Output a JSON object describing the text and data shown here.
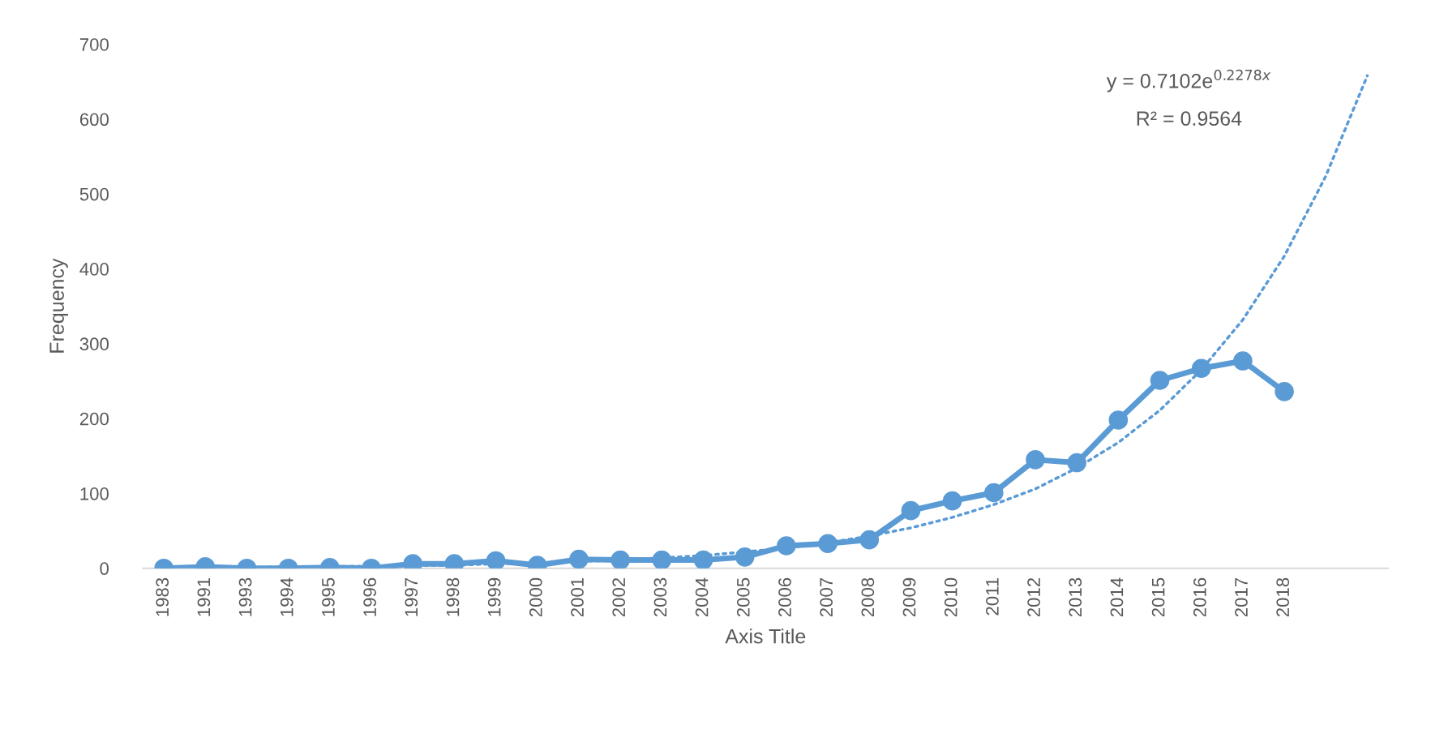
{
  "chart_data": {
    "type": "line",
    "xlabel": "Axis Title",
    "ylabel": "Frequency",
    "categories": [
      "1983",
      "1991",
      "1993",
      "1994",
      "1995",
      "1996",
      "1997",
      "1998",
      "1999",
      "2000",
      "2001",
      "2002",
      "2003",
      "2004",
      "2005",
      "2006",
      "2007",
      "2008",
      "2009",
      "2010",
      "2011",
      "2012",
      "2013",
      "2014",
      "2015",
      "2016",
      "2017",
      "2018",
      null,
      null
    ],
    "series": [
      {
        "color": "#5b9bd5",
        "marker": "circle",
        "line_style": "solid",
        "values": [
          0,
          2,
          0,
          0,
          1,
          0,
          6,
          6,
          10,
          4,
          12,
          11,
          11,
          11,
          15,
          30,
          33,
          38,
          77,
          90,
          101,
          145,
          141,
          198,
          251,
          267,
          277,
          236,
          null,
          null
        ]
      },
      {
        "color": "#5b9bd5",
        "marker": "none",
        "line_style": "dotted",
        "values": [
          1,
          1,
          1,
          2,
          2,
          3,
          4,
          4,
          6,
          7,
          9,
          11,
          14,
          17,
          22,
          27,
          34,
          43,
          54,
          68,
          85,
          106,
          134,
          168,
          211,
          265,
          332,
          417,
          524,
          658
        ]
      }
    ],
    "ylim": [
      0,
      700
    ],
    "yticks": [
      0,
      100,
      200,
      300,
      400,
      500,
      600,
      700
    ],
    "grid": false,
    "legend": false,
    "annotations": [
      "y = 0.7102e$^{0.2278x}$",
      "R² = 0.9564"
    ]
  }
}
